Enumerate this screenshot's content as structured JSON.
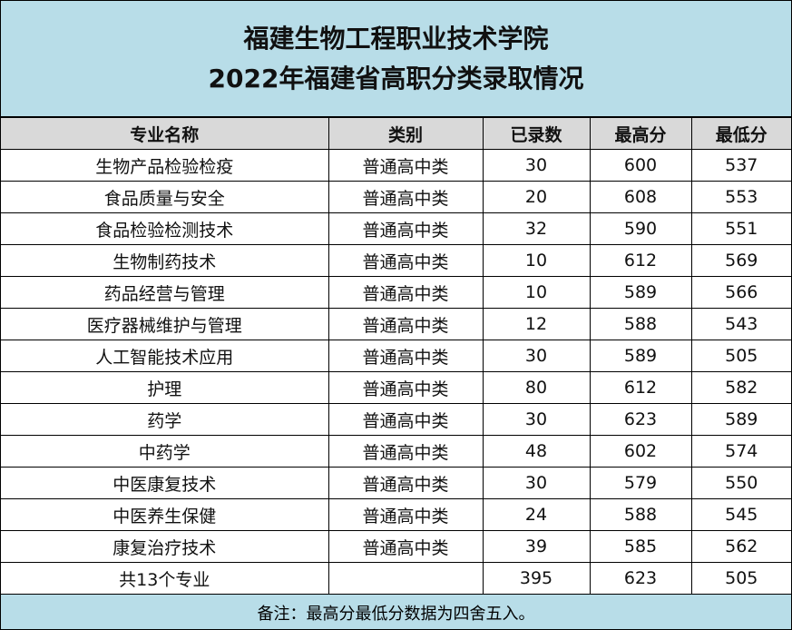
{
  "header": {
    "title": "福建生物工程职业技术学院",
    "subtitle": "2022年福建省高职分类录取情况"
  },
  "table": {
    "columns": [
      "专业名称",
      "类别",
      "已录数",
      "最高分",
      "最低分"
    ],
    "rows": [
      [
        "生物产品检验检疫",
        "普通高中类",
        30,
        600,
        537
      ],
      [
        "食品质量与安全",
        "普通高中类",
        20,
        608,
        553
      ],
      [
        "食品检验检测技术",
        "普通高中类",
        32,
        590,
        551
      ],
      [
        "生物制药技术",
        "普通高中类",
        10,
        612,
        569
      ],
      [
        "药品经营与管理",
        "普通高中类",
        10,
        589,
        566
      ],
      [
        "医疗器械维护与管理",
        "普通高中类",
        12,
        588,
        543
      ],
      [
        "人工智能技术应用",
        "普通高中类",
        30,
        589,
        505
      ],
      [
        "护理",
        "普通高中类",
        80,
        612,
        582
      ],
      [
        "药学",
        "普通高中类",
        30,
        623,
        589
      ],
      [
        "中药学",
        "普通高中类",
        48,
        602,
        574
      ],
      [
        "中医康复技术",
        "普通高中类",
        30,
        579,
        550
      ],
      [
        "中医养生保健",
        "普通高中类",
        24,
        588,
        545
      ],
      [
        "康复治疗技术",
        "普通高中类",
        39,
        585,
        562
      ]
    ],
    "total": {
      "label": "共13个专业",
      "count": 395,
      "max": 623,
      "min": 505
    }
  },
  "note": "备注：最高分最低分数据为四舍五入。"
}
